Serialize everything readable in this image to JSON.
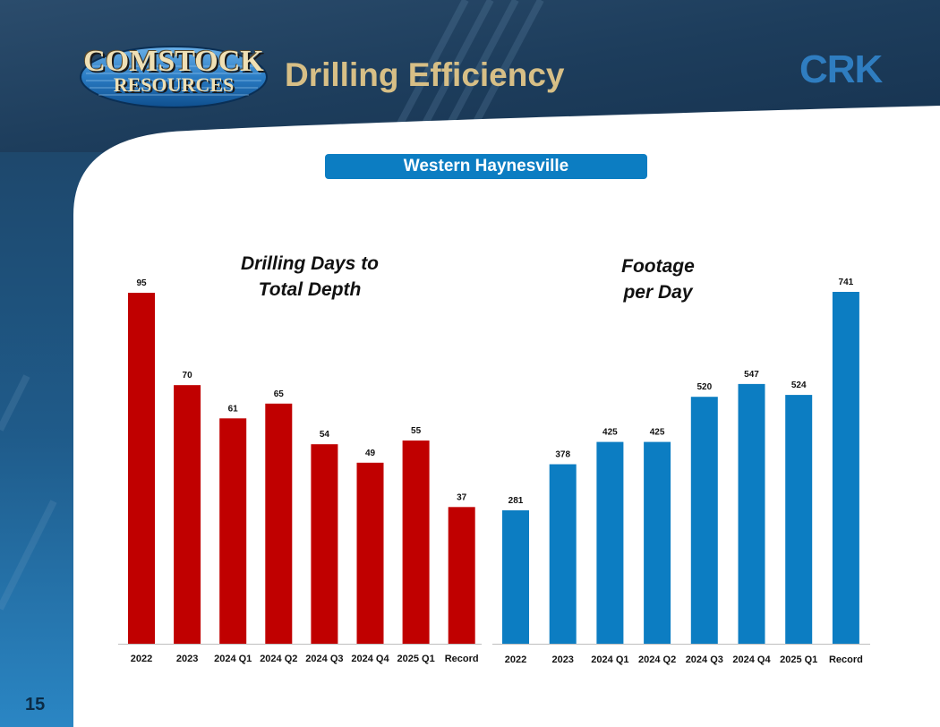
{
  "header": {
    "logo_line1": "COMSTOCK",
    "logo_line2": "RESOURCES",
    "title": "Drilling Efficiency",
    "ticker": "CRK"
  },
  "section_badge": "Western Haynesville",
  "page_number": "15",
  "colors": {
    "navy": "#1d3d5c",
    "accent_blue": "#0c7dc2",
    "bar_red": "#c00000",
    "bar_blue": "#0c7dc2",
    "title_gold": "#d7bf86"
  },
  "chart_data": [
    {
      "type": "bar",
      "title_line1": "Drilling Days to",
      "title_line2": "Total Depth",
      "categories": [
        "2022",
        "2023",
        "2024 Q1",
        "2024 Q2",
        "2024 Q3",
        "2024 Q4",
        "2025 Q1",
        "Record"
      ],
      "values": [
        95,
        70,
        61,
        65,
        54,
        49,
        55,
        37
      ],
      "ylim": [
        0,
        95
      ],
      "color": "#c00000",
      "data_labels": true,
      "grid": false
    },
    {
      "type": "bar",
      "title_line1": "Footage",
      "title_line2": "per Day",
      "categories": [
        "2022",
        "2023",
        "2024 Q1",
        "2024 Q2",
        "2024 Q3",
        "2024 Q4",
        "2025 Q1",
        "Record"
      ],
      "values": [
        281,
        378,
        425,
        425,
        520,
        547,
        524,
        741
      ],
      "ylim": [
        0,
        741
      ],
      "color": "#0c7dc2",
      "data_labels": true,
      "grid": false
    }
  ]
}
